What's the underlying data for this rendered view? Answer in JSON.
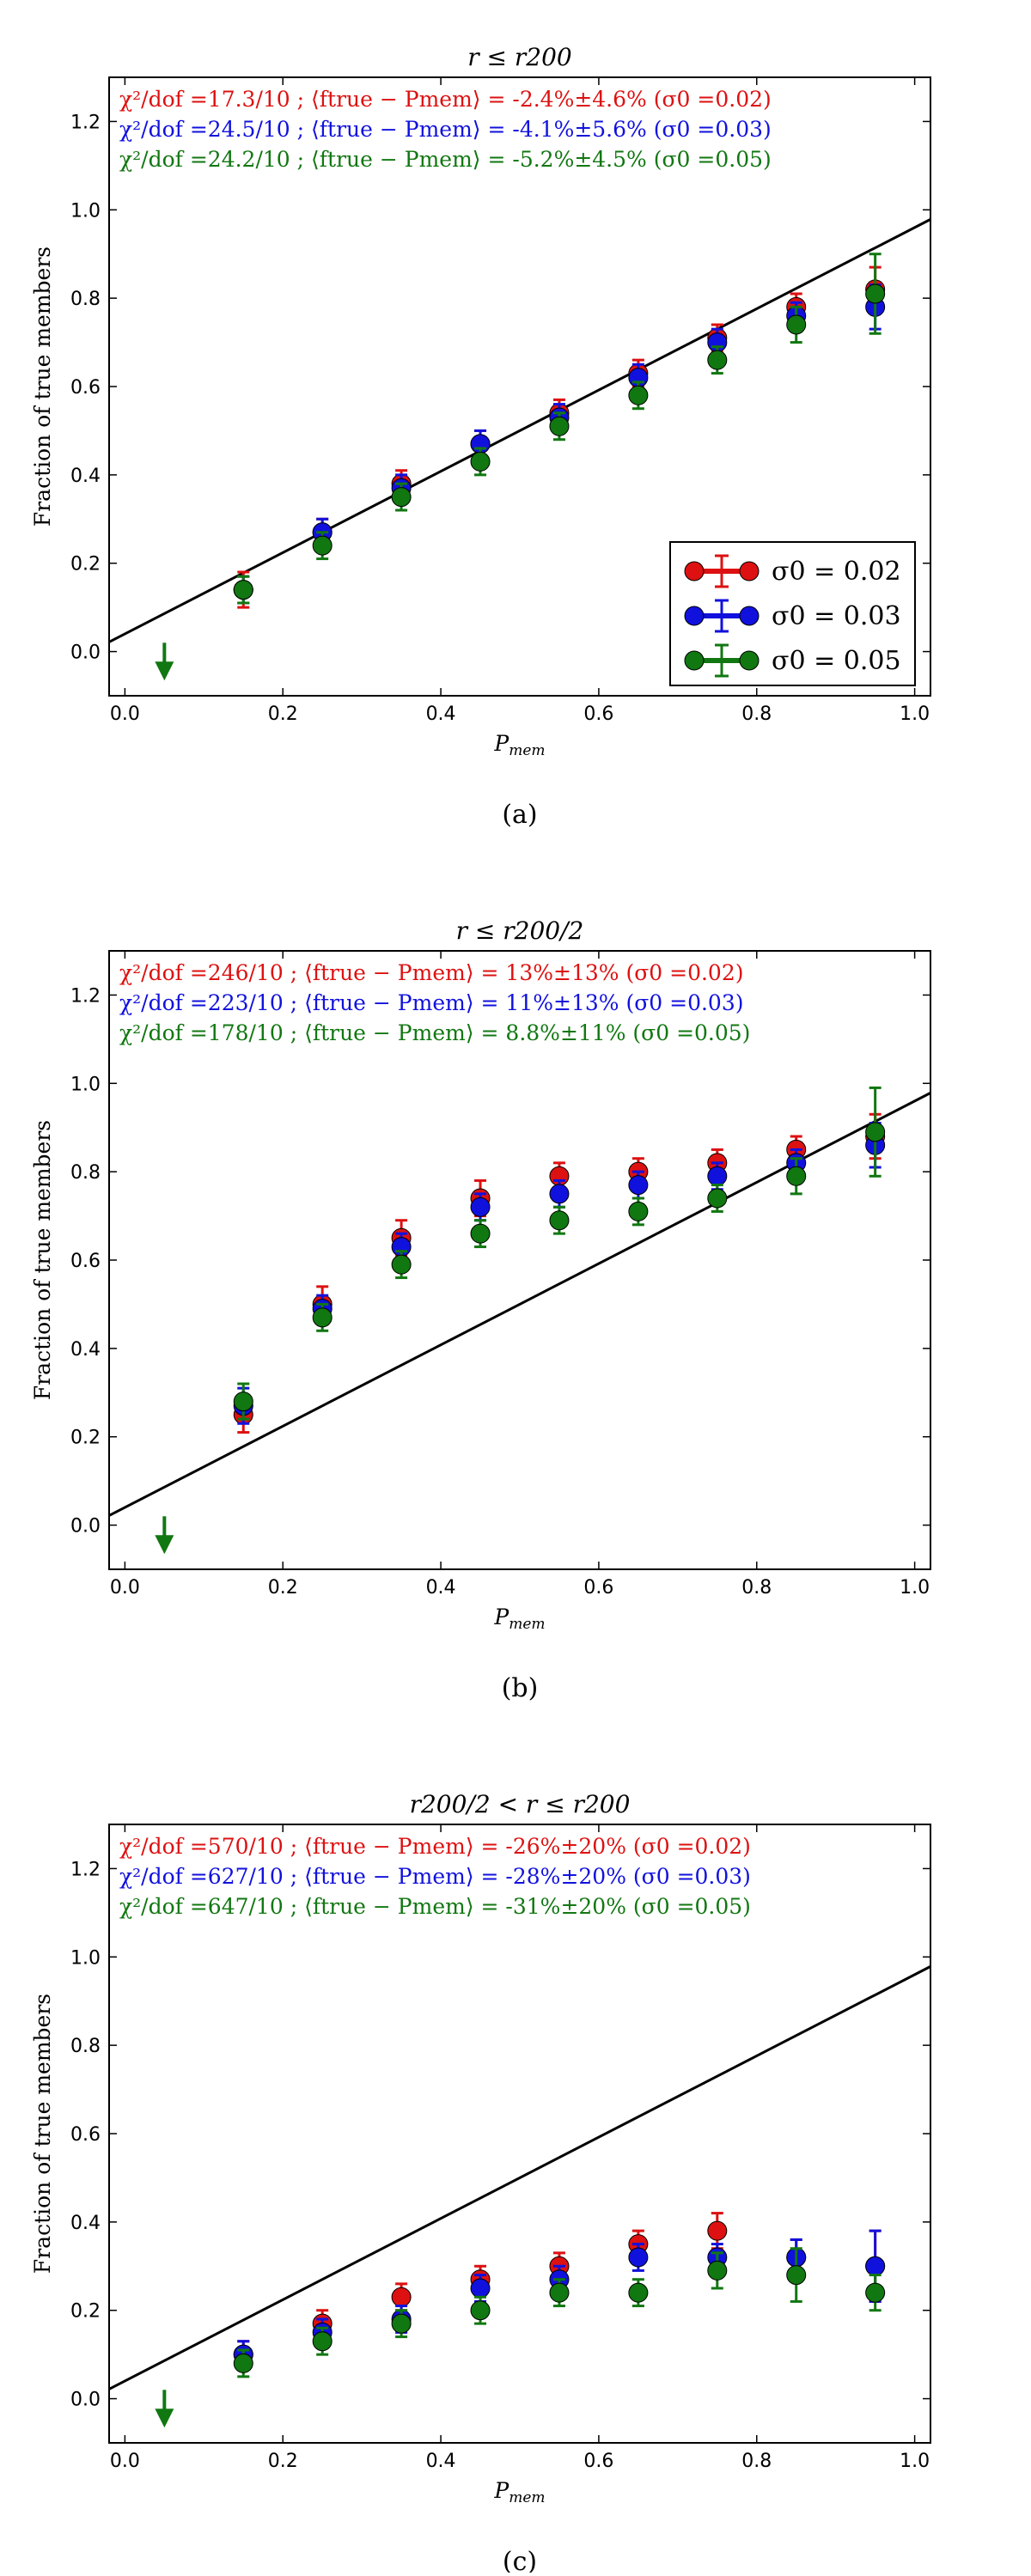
{
  "colors": {
    "s002": "#dd1111",
    "s003": "#1111dd",
    "s005": "#117711"
  },
  "chart_data": [
    {
      "type": "scatter",
      "title": "r ≤ r200",
      "xlabel": "Pmem",
      "ylabel": "Fraction of true members",
      "xlim": [
        -0.02,
        1.02
      ],
      "ylim": [
        -0.1,
        1.3
      ],
      "caption": "(a)",
      "grid": false,
      "legend": {
        "placement": "lower-right",
        "entries": [
          "σ0 = 0.02",
          "σ0 = 0.03",
          "σ0 = 0.05"
        ]
      },
      "annotations": [
        "χ²/dof =17.3/10 ; ⟨ftrue − Pmem⟩ = -2.4%±4.6% (σ0 =0.02)",
        "χ²/dof =24.5/10 ; ⟨ftrue − Pmem⟩ = -4.1%±5.6% (σ0 =0.03)",
        "χ²/dof =24.2/10 ; ⟨ftrue − Pmem⟩ = -5.2%±4.5% (σ0 =0.05)"
      ],
      "x": [
        0.15,
        0.25,
        0.35,
        0.45,
        0.55,
        0.65,
        0.75,
        0.85,
        0.95
      ],
      "series": [
        {
          "name": "σ0 = 0.02",
          "color": "#dd1111",
          "values": [
            0.14,
            0.27,
            0.38,
            0.47,
            0.54,
            0.63,
            0.71,
            0.78,
            0.82
          ],
          "err": [
            0.04,
            0.03,
            0.03,
            0.03,
            0.03,
            0.03,
            0.03,
            0.03,
            0.05
          ]
        },
        {
          "name": "σ0 = 0.03",
          "color": "#1111dd",
          "values": [
            0.14,
            0.27,
            0.37,
            0.47,
            0.53,
            0.62,
            0.7,
            0.76,
            0.78
          ],
          "err": [
            0.03,
            0.03,
            0.03,
            0.03,
            0.03,
            0.03,
            0.03,
            0.03,
            0.05
          ]
        },
        {
          "name": "σ0 = 0.05",
          "color": "#117711",
          "values": [
            0.14,
            0.24,
            0.35,
            0.43,
            0.51,
            0.58,
            0.66,
            0.74,
            0.81
          ],
          "err": [
            0.03,
            0.03,
            0.03,
            0.03,
            0.03,
            0.03,
            0.03,
            0.04,
            0.09
          ]
        }
      ],
      "upper_limit": {
        "x": 0.05,
        "color": "#117711"
      },
      "reference_line": {
        "slope": 0.92,
        "intercept": 0.04
      }
    },
    {
      "type": "scatter",
      "title": "r ≤ r200/2",
      "xlabel": "Pmem",
      "ylabel": "Fraction of true members",
      "xlim": [
        -0.02,
        1.02
      ],
      "ylim": [
        -0.1,
        1.3
      ],
      "caption": "(b)",
      "grid": false,
      "annotations": [
        "χ²/dof =246/10 ; ⟨ftrue − Pmem⟩ = 13%±13% (σ0 =0.02)",
        "χ²/dof =223/10 ; ⟨ftrue − Pmem⟩ = 11%±13% (σ0 =0.03)",
        "χ²/dof =178/10 ; ⟨ftrue − Pmem⟩ = 8.8%±11% (σ0 =0.05)"
      ],
      "x": [
        0.15,
        0.25,
        0.35,
        0.45,
        0.55,
        0.65,
        0.75,
        0.85,
        0.95
      ],
      "series": [
        {
          "name": "σ0 = 0.02",
          "color": "#dd1111",
          "values": [
            0.25,
            0.5,
            0.65,
            0.74,
            0.79,
            0.8,
            0.82,
            0.85,
            0.88
          ],
          "err": [
            0.04,
            0.04,
            0.04,
            0.04,
            0.03,
            0.03,
            0.03,
            0.03,
            0.05
          ]
        },
        {
          "name": "σ0 = 0.03",
          "color": "#1111dd",
          "values": [
            0.27,
            0.49,
            0.63,
            0.72,
            0.75,
            0.77,
            0.79,
            0.82,
            0.86
          ],
          "err": [
            0.04,
            0.03,
            0.03,
            0.03,
            0.03,
            0.03,
            0.03,
            0.03,
            0.05
          ]
        },
        {
          "name": "σ0 = 0.05",
          "color": "#117711",
          "values": [
            0.28,
            0.47,
            0.59,
            0.66,
            0.69,
            0.71,
            0.74,
            0.79,
            0.89
          ],
          "err": [
            0.04,
            0.03,
            0.03,
            0.03,
            0.03,
            0.03,
            0.03,
            0.04,
            0.1
          ]
        }
      ],
      "upper_limit": {
        "x": 0.05,
        "color": "#117711"
      },
      "reference_line": {
        "slope": 0.92,
        "intercept": 0.04
      }
    },
    {
      "type": "scatter",
      "title": "r200/2 < r ≤ r200",
      "xlabel": "Pmem",
      "ylabel": "Fraction of true members",
      "xlim": [
        -0.02,
        1.02
      ],
      "ylim": [
        -0.1,
        1.3
      ],
      "caption": "(c)",
      "grid": false,
      "annotations": [
        "χ²/dof =570/10 ; ⟨ftrue − Pmem⟩ = -26%±20% (σ0 =0.02)",
        "χ²/dof =627/10 ; ⟨ftrue − Pmem⟩ = -28%±20% (σ0 =0.03)",
        "χ²/dof =647/10 ; ⟨ftrue − Pmem⟩ = -31%±20% (σ0 =0.05)"
      ],
      "x": [
        0.15,
        0.25,
        0.35,
        0.45,
        0.55,
        0.65,
        0.75,
        0.85,
        0.95
      ],
      "series": [
        {
          "name": "σ0 = 0.02",
          "color": "#dd1111",
          "values": [
            0.1,
            0.17,
            0.23,
            0.27,
            0.3,
            0.35,
            0.38,
            0.32,
            0.3
          ],
          "err": [
            0.03,
            0.03,
            0.03,
            0.03,
            0.03,
            0.03,
            0.04,
            0.04,
            0.08
          ]
        },
        {
          "name": "σ0 = 0.03",
          "color": "#1111dd",
          "values": [
            0.1,
            0.15,
            0.18,
            0.25,
            0.27,
            0.32,
            0.32,
            0.32,
            0.3
          ],
          "err": [
            0.03,
            0.03,
            0.03,
            0.03,
            0.03,
            0.03,
            0.03,
            0.04,
            0.08
          ]
        },
        {
          "name": "σ0 = 0.05",
          "color": "#117711",
          "values": [
            0.08,
            0.13,
            0.17,
            0.2,
            0.24,
            0.24,
            0.29,
            0.28,
            0.24
          ],
          "err": [
            0.03,
            0.03,
            0.03,
            0.03,
            0.03,
            0.03,
            0.04,
            0.06,
            0.04
          ]
        }
      ],
      "upper_limit": {
        "x": 0.05,
        "color": "#117711"
      },
      "reference_line": {
        "slope": 0.92,
        "intercept": 0.04
      }
    }
  ]
}
